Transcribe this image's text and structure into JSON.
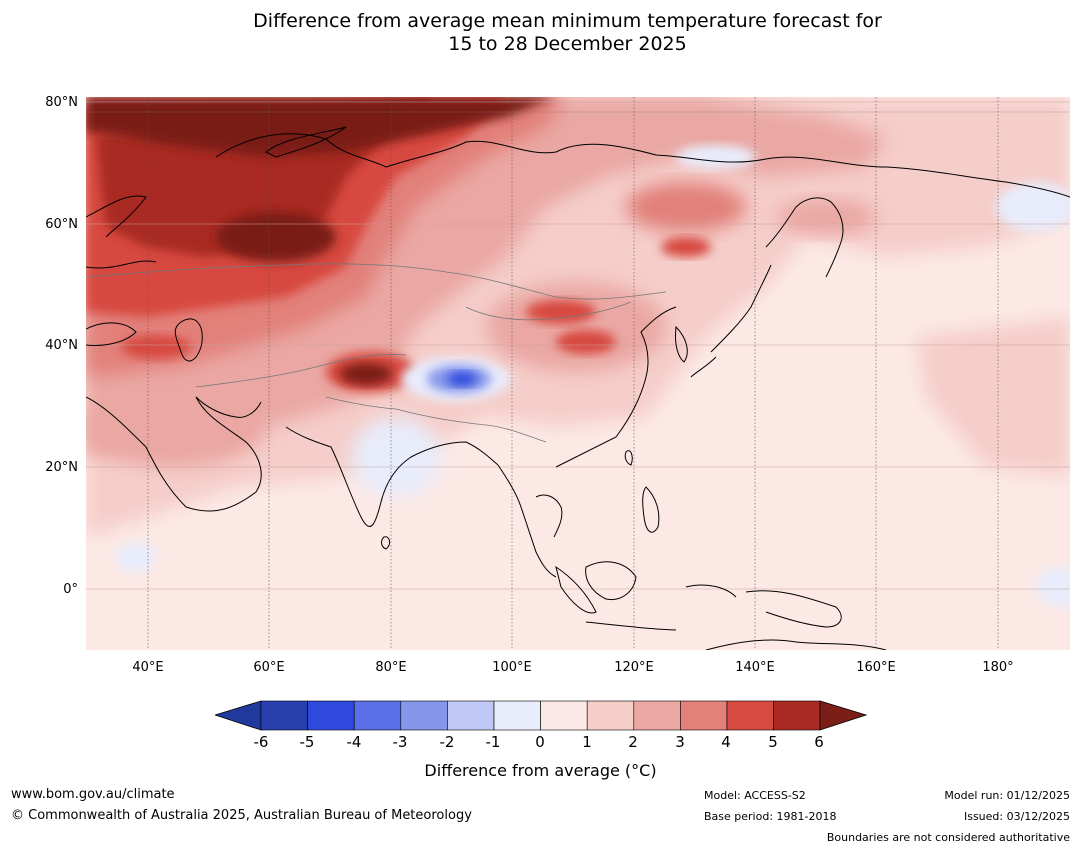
{
  "title": {
    "line1": "Difference from average mean minimum temperature forecast for",
    "line2": "15 to 28 December 2025"
  },
  "map": {
    "lat_labels": [
      "80°N",
      "60°N",
      "40°N",
      "20°N",
      "0°"
    ],
    "lon_labels": [
      "40°E",
      "60°E",
      "80°E",
      "100°E",
      "120°E",
      "140°E",
      "160°E",
      "180°"
    ],
    "extent": {
      "lon_min": 30,
      "lon_max": 192,
      "lat_min": -10,
      "lat_max": 80
    },
    "anomalies": [
      {
        "region": "northern Russia / Barents Sea",
        "value": 6
      },
      {
        "region": "western Russia",
        "value": 5
      },
      {
        "region": "western Kazakhstan",
        "value": 4
      },
      {
        "region": "northern Pakistan / Kashmir",
        "value": 6
      },
      {
        "region": "Tibetan Plateau",
        "value": -3
      },
      {
        "region": "Mongolia / northern China",
        "value": 4
      },
      {
        "region": "Sea of Okhotsk region",
        "value": 3
      },
      {
        "region": "central India",
        "value": -1
      },
      {
        "region": "tropical Indian Ocean",
        "value": 0.5
      },
      {
        "region": "tropical Pacific",
        "value": 0.5
      }
    ]
  },
  "colorbar": {
    "ticks": [
      "-6",
      "-5",
      "-4",
      "-3",
      "-2",
      "-1",
      "0",
      "1",
      "2",
      "3",
      "4",
      "5",
      "6"
    ],
    "colors": [
      "#1f3a9c",
      "#2a3fae",
      "#2f49df",
      "#5b70e6",
      "#8696eb",
      "#c0c8f5",
      "#e8ecfb",
      "#fce8e6",
      "#f5cdc9",
      "#eaa7a3",
      "#e2807a",
      "#d74a40",
      "#a82a22",
      "#7a1e17"
    ],
    "label": "Difference from average (°C)"
  },
  "footer": {
    "url": "www.bom.gov.au/climate",
    "copyright": "© Commonwealth of Australia 2025, Australian Bureau of Meteorology",
    "model": "Model: ACCESS-S2",
    "base_period": "Base period: 1981-2018",
    "model_run": "Model run: 01/12/2025",
    "issued": "Issued: 03/12/2025",
    "disclaimer": "Boundaries are not considered authoritative"
  }
}
